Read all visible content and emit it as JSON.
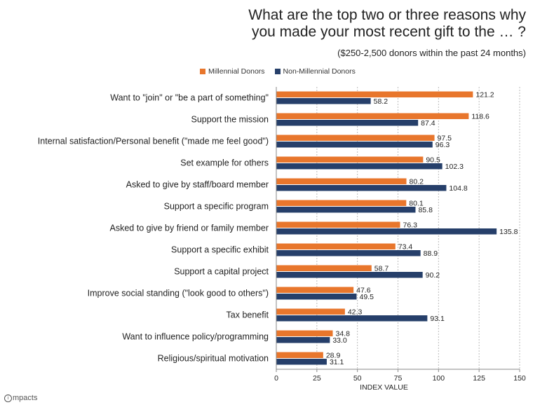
{
  "chart_data": {
    "type": "bar",
    "orientation": "horizontal",
    "title": "What are the top two or three reasons why you made your most recent gift to the … ?",
    "title_lines": [
      "What are the top two or three reasons why",
      "you made your most recent gift to the … ?"
    ],
    "subtitle": "($250-2,500 donors within the past 24 months)",
    "xlabel": "INDEX VALUE",
    "xlim": [
      0,
      150
    ],
    "xticks": [
      0,
      25,
      50,
      75,
      100,
      125,
      150
    ],
    "grid": true,
    "legend_position": "top",
    "categories": [
      "Want to  \"join\" or \"be a part of something\"",
      "Support the mission",
      "Internal satisfaction/Personal benefit (\"made me feel good\")",
      "Set example for others",
      "Asked to give by staff/board member",
      "Support a specific program",
      "Asked to give by friend or family member",
      "Support a specific exhibit",
      "Support a capital project",
      "Improve social standing (\"look good to others\")",
      "Tax benefit",
      "Want to influence policy/programming",
      "Religious/spiritual motivation"
    ],
    "series": [
      {
        "name": "Millennial Donors",
        "color": "#e8762c",
        "values": [
          121.2,
          118.6,
          97.5,
          90.5,
          80.2,
          80.1,
          76.3,
          73.4,
          58.7,
          47.6,
          42.3,
          34.8,
          28.9
        ],
        "labels": [
          "121.2",
          "118.6",
          "97.5",
          "90.5",
          "80.2",
          "80.1",
          "76.3",
          "73.4",
          "58.7",
          "47.6",
          "42.3",
          "34.8",
          "28.9"
        ]
      },
      {
        "name": "Non-Millennial Donors",
        "color": "#263f6a",
        "values": [
          58.2,
          87.4,
          96.3,
          102.3,
          104.8,
          85.8,
          135.8,
          88.9,
          90.2,
          49.5,
          93.1,
          33.0,
          31.1
        ],
        "labels": [
          "58.2",
          "87.4",
          "96.3",
          "102.3",
          "104.8",
          "85.8",
          "135.8",
          "88.9",
          "90.2",
          "49.5",
          "93.1",
          "33.0",
          "31.1"
        ]
      }
    ]
  },
  "legend": {
    "millennial": "Millennial Donors",
    "non_millennial": "Non-Millennial Donors"
  },
  "logo": {
    "mark": "i",
    "text": "mpacts"
  }
}
